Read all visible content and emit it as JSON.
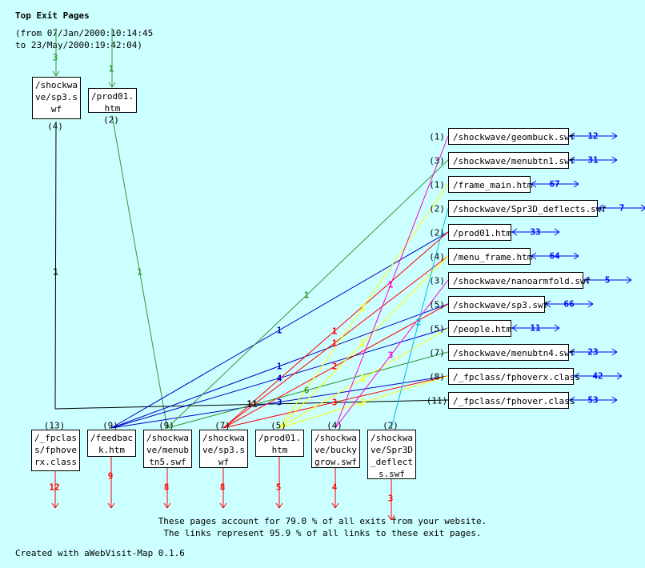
{
  "title": "Top Exit Pages",
  "range_line1": "(from 07/Jan/2000:10:14:45",
  "range_line2": "to 23/May/2000:19:42:04)",
  "footer_line1": "These pages account for 79.0 % of all exits from your website.",
  "footer_line2": "The links represent 95.9 % of all links to these exit pages.",
  "credit": "Created with aWebVisit-Map 0.1.6",
  "colors": {
    "bg": "#ccffff",
    "green": "#339933",
    "blue": "#0000cc",
    "red": "#ff0000",
    "yellow": "#ffff00",
    "magenta": "#ff00cc",
    "cyan": "#00bbee",
    "black": "#000000",
    "exit": "#ff0000",
    "out": "#0000ff"
  },
  "top_nodes": [
    {
      "id": "t1",
      "label": "/shockwa\nve/sp3.s\nwf",
      "count": "(4)",
      "in": "3"
    },
    {
      "id": "t2",
      "label": "/prod01.\nhtm",
      "count": "(2)",
      "in": "1"
    }
  ],
  "exit_nodes": [
    {
      "id": "b1",
      "label": "/_fpclas\ns/fphove\nrx.class",
      "count": "(13)",
      "exits": "12"
    },
    {
      "id": "b2",
      "label": "/feedbac\nk.htm",
      "count": "(9)",
      "exits": "9"
    },
    {
      "id": "b3",
      "label": "/shockwa\nve/menub\ntn5.swf",
      "count": "(9)",
      "exits": "8"
    },
    {
      "id": "b4",
      "label": "/shockwa\nve/sp3.s\nwf",
      "count": "(7)",
      "exits": "8"
    },
    {
      "id": "b5",
      "label": "/prod01.\nhtm",
      "count": "(5)",
      "exits": "5"
    },
    {
      "id": "b6",
      "label": "/shockwa\nve/bucky\ngrow.swf",
      "count": "(4)",
      "exits": "4"
    },
    {
      "id": "b7",
      "label": "/shockwa\nve/Spr3D\n_deflect\ns.swf",
      "count": "(2)",
      "exits": "3"
    }
  ],
  "right_nodes": [
    {
      "id": "r1",
      "label": "/shockwave/geombuck.swf",
      "count": "(1)",
      "out": "12"
    },
    {
      "id": "r2",
      "label": "/shockwave/menubtn1.swf",
      "count": "(3)",
      "out": "31"
    },
    {
      "id": "r3",
      "label": "/frame_main.htm",
      "count": "(1)",
      "out": "67"
    },
    {
      "id": "r4",
      "label": "/shockwave/Spr3D_deflects.swf",
      "count": "(2)",
      "out": "7"
    },
    {
      "id": "r5",
      "label": "/prod01.htm",
      "count": "(2)",
      "out": "33"
    },
    {
      "id": "r6",
      "label": "/menu_frame.htm",
      "count": "(4)",
      "out": "64"
    },
    {
      "id": "r7",
      "label": "/shockwave/nanoarmfold.swf",
      "count": "(3)",
      "out": "5"
    },
    {
      "id": "r8",
      "label": "/shockwave/sp3.swf",
      "count": "(5)",
      "out": "66"
    },
    {
      "id": "r9",
      "label": "/people.htm",
      "count": "(5)",
      "out": "11"
    },
    {
      "id": "r10",
      "label": "/shockwave/menubtn4.swf",
      "count": "(7)",
      "out": "23"
    },
    {
      "id": "r11",
      "label": "/_fpclass/fphoverx.class",
      "count": "(8)",
      "out": "42"
    },
    {
      "id": "r12",
      "label": "/_fpclass/fphover.class",
      "count": "(11)",
      "out": "53"
    }
  ],
  "links": [
    {
      "from": "t1",
      "to": "b1",
      "color": "black",
      "value": "1"
    },
    {
      "from": "t2",
      "to": "b3",
      "color": "green",
      "value": "1"
    },
    {
      "from": "b1",
      "to": "r12",
      "color": "black",
      "value": "11"
    },
    {
      "from": "b2",
      "to": "r5",
      "color": "blue",
      "value": "1"
    },
    {
      "from": "b2",
      "to": "r8",
      "color": "blue",
      "value": "1"
    },
    {
      "from": "b2",
      "to": "r9",
      "color": "blue",
      "value": "4"
    },
    {
      "from": "b2",
      "to": "r11",
      "color": "blue",
      "value": "3"
    },
    {
      "from": "b3",
      "to": "r2",
      "color": "green",
      "value": "1"
    },
    {
      "from": "b3",
      "to": "r10",
      "color": "green",
      "value": "6"
    },
    {
      "from": "b4",
      "to": "r5",
      "color": "red",
      "value": "1"
    },
    {
      "from": "b4",
      "to": "r6",
      "color": "red",
      "value": "1"
    },
    {
      "from": "b4",
      "to": "r8",
      "color": "red",
      "value": "2"
    },
    {
      "from": "b4",
      "to": "r11",
      "color": "red",
      "value": "3"
    },
    {
      "from": "b5",
      "to": "r3",
      "color": "yellow",
      "value": "1"
    },
    {
      "from": "b5",
      "to": "r6",
      "color": "yellow",
      "value": "1"
    },
    {
      "from": "b5",
      "to": "r9",
      "color": "yellow",
      "value": "1"
    },
    {
      "from": "b5",
      "to": "r11",
      "color": "yellow",
      "value": "2"
    },
    {
      "from": "b6",
      "to": "r1",
      "color": "magenta",
      "value": "1"
    },
    {
      "from": "b6",
      "to": "r7",
      "color": "magenta",
      "value": "3"
    },
    {
      "from": "b7",
      "to": "r4",
      "color": "cyan",
      "value": "2"
    }
  ]
}
